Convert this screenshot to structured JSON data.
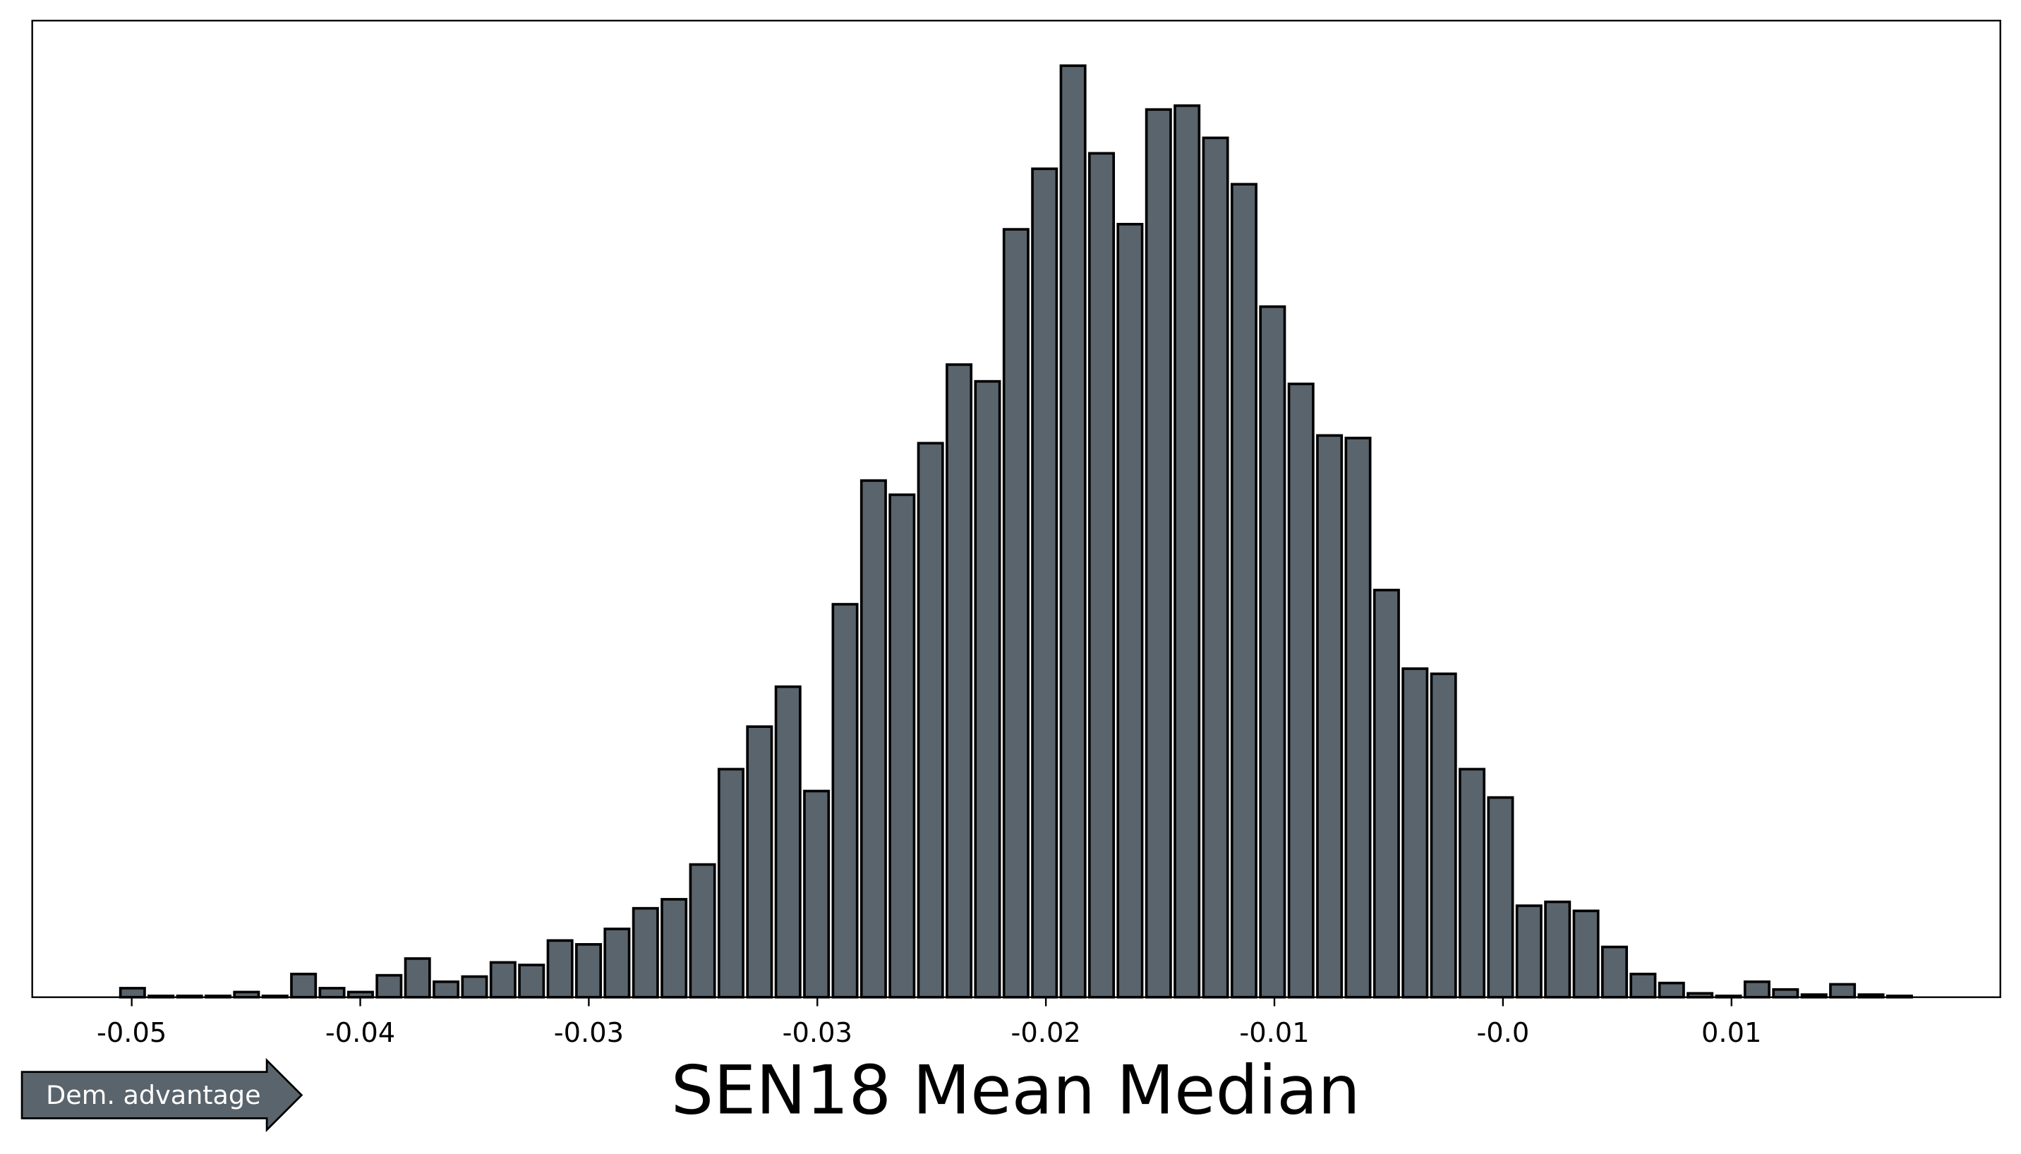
{
  "chart_data": {
    "type": "histogram",
    "xlabel": "SEN18 Mean Median",
    "annotation": "Dem. advantage",
    "color": "#5a646c",
    "edgecolor": "#000000",
    "bins": [
      -0.052,
      -0.05094,
      -0.04988,
      -0.04882,
      -0.04776,
      -0.0467,
      -0.04564,
      -0.04458,
      -0.04352,
      -0.04246,
      -0.0414,
      -0.04034,
      -0.03928,
      -0.03822,
      -0.03716,
      -0.0361,
      -0.03504,
      -0.03398,
      -0.03292,
      -0.03186,
      -0.0308,
      -0.02974,
      -0.02868,
      -0.02762,
      -0.02656,
      -0.0255,
      -0.02444,
      -0.02338,
      -0.02232,
      -0.02126,
      -0.0202,
      -0.01914,
      -0.01808,
      -0.01702,
      -0.01596,
      -0.0149,
      -0.01384,
      -0.01278,
      -0.01172,
      -0.01066,
      -0.0096,
      -0.00854,
      -0.00748,
      -0.00642,
      -0.00536,
      -0.0043,
      -0.00324,
      -0.00218,
      -0.00112,
      -6e-05,
      0.001,
      0.00206,
      0.00312,
      0.00418,
      0.00524,
      0.0063,
      0.00736,
      0.00842,
      0.00948,
      0.01054,
      0.0116,
      0.01266,
      0.01372,
      0.01478
    ],
    "values": [
      7,
      1,
      1,
      1,
      4,
      1,
      18,
      7,
      4,
      17,
      30,
      12,
      16,
      27,
      25,
      44,
      41,
      53,
      69,
      76,
      103,
      177,
      210,
      241,
      160,
      305,
      401,
      390,
      430,
      491,
      478,
      596,
      643,
      723,
      655,
      600,
      689,
      692,
      667,
      631,
      536,
      476,
      436,
      434,
      316,
      255,
      251,
      177,
      155,
      71,
      74,
      67,
      39,
      18,
      11,
      3,
      1,
      12,
      6,
      2,
      10,
      2,
      1
    ],
    "xlim": [
      -0.0552,
      0.018
    ],
    "ylim": [
      0,
      758
    ],
    "xticks": [
      {
        "value": -0.0515,
        "label": "-0.05"
      },
      {
        "value": -0.043,
        "label": "-0.04"
      },
      {
        "value": -0.0345,
        "label": "-0.03"
      },
      {
        "value": -0.026,
        "label": "-0.03"
      },
      {
        "value": -0.0175,
        "label": "-0.02"
      },
      {
        "value": -0.009,
        "label": "-0.01"
      },
      {
        "value": -0.0005,
        "label": "-0.0"
      },
      {
        "value": 0.008,
        "label": "0.01"
      }
    ]
  }
}
